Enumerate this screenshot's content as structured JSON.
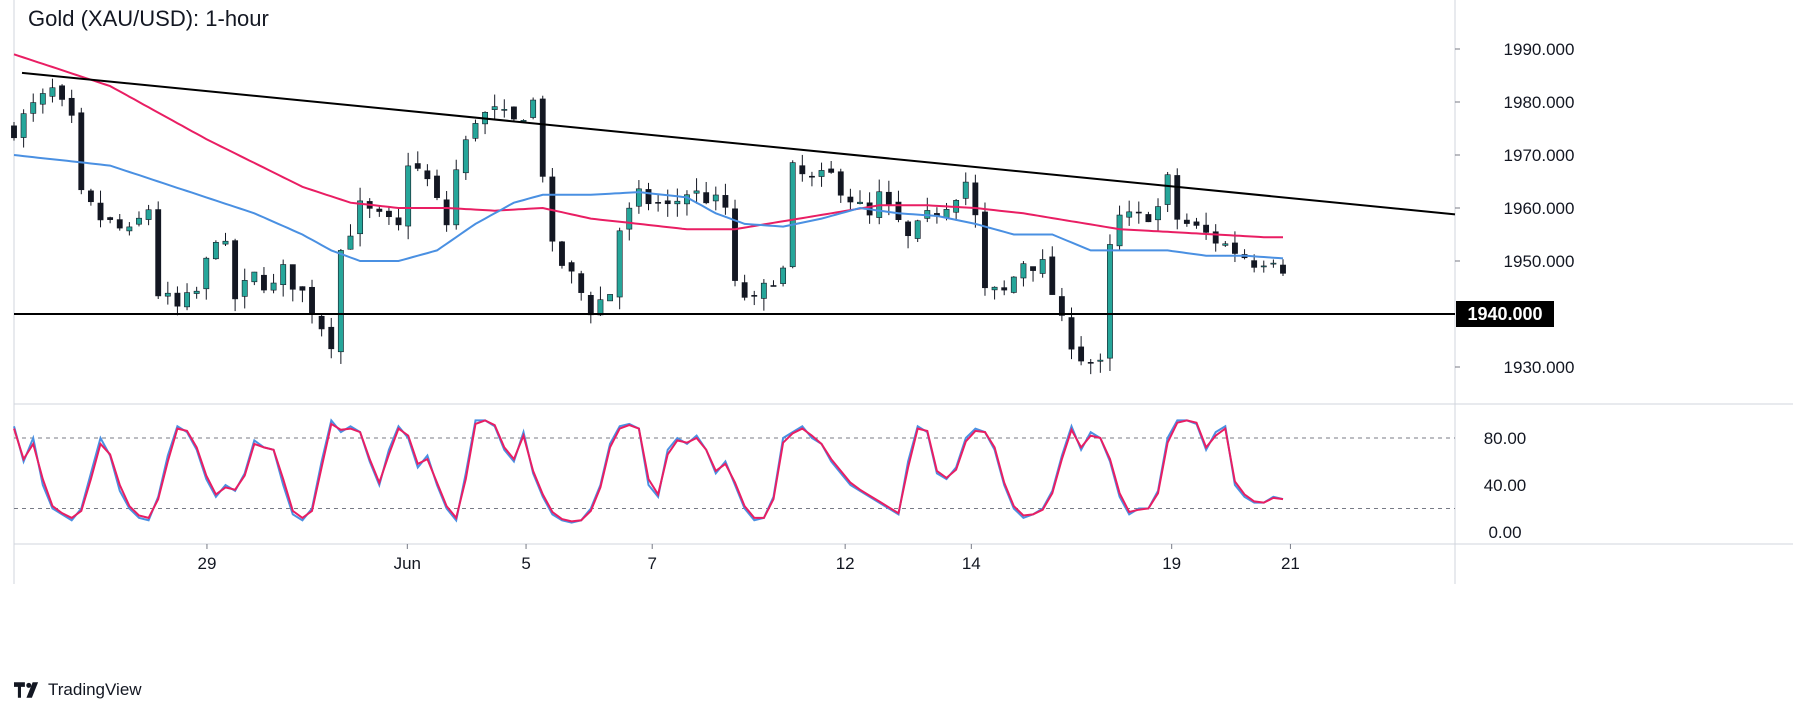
{
  "title": "Gold (XAU/USD): 1-hour",
  "brand": "TradingView",
  "colors": {
    "up_candle": "#26a69a",
    "down_candle": "#131722",
    "ma_slow": "#e91e63",
    "ma_fast": "#4a90e2",
    "stoch_k": "#4a90e2",
    "stoch_d": "#e91e63",
    "trendline": "#000000",
    "support": "#000000",
    "grid": "#d1d4dc"
  },
  "chart_data": [
    {
      "type": "candlestick",
      "title": "Gold (XAU/USD): 1-hour",
      "x_ticks": [
        "29",
        "Jun",
        "5",
        "7",
        "12",
        "14",
        "19",
        "21"
      ],
      "y_ticks": [
        "1990.000",
        "1980.000",
        "1970.000",
        "1960.000",
        "1950.000",
        "1930.000"
      ],
      "ylim": [
        1922,
        1998
      ],
      "support_level": 1940,
      "support_label": "1940.000",
      "trendline": {
        "start": 1985.5,
        "end": 1958.8
      },
      "close_path": [
        [
          0,
          1975
        ],
        [
          2,
          1979
        ],
        [
          4,
          1982
        ],
        [
          6,
          1976
        ],
        [
          7,
          1962
        ],
        [
          9,
          1958
        ],
        [
          12,
          1955
        ],
        [
          14,
          1960
        ],
        [
          15,
          1944
        ],
        [
          17,
          1941
        ],
        [
          19,
          1944
        ],
        [
          21,
          1955
        ],
        [
          22,
          1952
        ],
        [
          23,
          1943
        ],
        [
          25,
          1947
        ],
        [
          27,
          1945
        ],
        [
          28,
          1948
        ],
        [
          30,
          1944
        ],
        [
          32,
          1938
        ],
        [
          33,
          1935
        ],
        [
          34,
          1952
        ],
        [
          36,
          1960
        ],
        [
          38,
          1958
        ],
        [
          40,
          1956
        ],
        [
          41,
          1969
        ],
        [
          43,
          1965
        ],
        [
          45,
          1957
        ],
        [
          46,
          1967
        ],
        [
          48,
          1977
        ],
        [
          50,
          1978
        ],
        [
          52,
          1976
        ],
        [
          54,
          1980
        ],
        [
          55,
          1967
        ],
        [
          56,
          1952
        ],
        [
          58,
          1947
        ],
        [
          60,
          1941
        ],
        [
          62,
          1944
        ],
        [
          63,
          1956
        ],
        [
          65,
          1962
        ],
        [
          68,
          1960
        ],
        [
          70,
          1963
        ],
        [
          72,
          1962
        ],
        [
          74,
          1960
        ],
        [
          75,
          1945
        ],
        [
          77,
          1942
        ],
        [
          79,
          1947
        ],
        [
          80,
          1948
        ],
        [
          81,
          1967
        ],
        [
          83,
          1965
        ],
        [
          85,
          1966
        ],
        [
          87,
          1962
        ],
        [
          89,
          1958
        ],
        [
          90,
          1962
        ],
        [
          92,
          1957
        ],
        [
          93,
          1954
        ],
        [
          95,
          1958
        ],
        [
          97,
          1961
        ],
        [
          99,
          1965
        ],
        [
          100,
          1958
        ],
        [
          101,
          1944
        ],
        [
          103,
          1944
        ],
        [
          105,
          1950
        ],
        [
          107,
          1949
        ],
        [
          108,
          1944
        ],
        [
          109,
          1938
        ],
        [
          111,
          1932
        ],
        [
          113,
          1930
        ],
        [
          114,
          1952
        ],
        [
          115,
          1958
        ],
        [
          117,
          1958
        ],
        [
          119,
          1960
        ],
        [
          120,
          1965
        ],
        [
          121,
          1958
        ],
        [
          123,
          1956
        ],
        [
          125,
          1954
        ],
        [
          127,
          1952
        ],
        [
          129,
          1950
        ],
        [
          131,
          1951
        ],
        [
          132,
          1949
        ]
      ],
      "n_candles": 133,
      "ma_slow": [
        [
          0,
          1989
        ],
        [
          10,
          1983
        ],
        [
          20,
          1973
        ],
        [
          30,
          1964
        ],
        [
          35,
          1961
        ],
        [
          40,
          1960
        ],
        [
          45,
          1960
        ],
        [
          50,
          1959.5
        ],
        [
          55,
          1960
        ],
        [
          60,
          1958
        ],
        [
          65,
          1957
        ],
        [
          70,
          1956
        ],
        [
          75,
          1956
        ],
        [
          80,
          1957.5
        ],
        [
          85,
          1959
        ],
        [
          90,
          1960.5
        ],
        [
          95,
          1960.5
        ],
        [
          100,
          1960
        ],
        [
          105,
          1959
        ],
        [
          110,
          1957.5
        ],
        [
          115,
          1956
        ],
        [
          120,
          1955.5
        ],
        [
          125,
          1955
        ],
        [
          130,
          1954.5
        ],
        [
          132,
          1954.5
        ]
      ],
      "ma_fast": [
        [
          0,
          1970
        ],
        [
          5,
          1969
        ],
        [
          10,
          1968
        ],
        [
          15,
          1965
        ],
        [
          20,
          1962
        ],
        [
          25,
          1959
        ],
        [
          30,
          1955
        ],
        [
          33,
          1952
        ],
        [
          36,
          1950
        ],
        [
          40,
          1950
        ],
        [
          44,
          1952
        ],
        [
          48,
          1957
        ],
        [
          52,
          1961
        ],
        [
          55,
          1962.5
        ],
        [
          60,
          1962.5
        ],
        [
          65,
          1963
        ],
        [
          70,
          1962
        ],
        [
          73,
          1959
        ],
        [
          76,
          1957
        ],
        [
          80,
          1956.5
        ],
        [
          84,
          1958
        ],
        [
          88,
          1960
        ],
        [
          92,
          1959
        ],
        [
          96,
          1958.5
        ],
        [
          100,
          1957
        ],
        [
          104,
          1955
        ],
        [
          108,
          1955
        ],
        [
          112,
          1952
        ],
        [
          116,
          1952
        ],
        [
          120,
          1952
        ],
        [
          124,
          1951
        ],
        [
          128,
          1951
        ],
        [
          132,
          1950.5
        ]
      ]
    },
    {
      "type": "line",
      "title": "",
      "y_ticks": [
        "80.00",
        "40.00",
        "0.00"
      ],
      "ylim": [
        -5,
        105
      ],
      "dashed_levels": [
        80,
        20
      ],
      "series": [
        {
          "values": [
            90,
            60,
            80,
            40,
            20,
            15,
            10,
            20,
            50,
            80,
            65,
            35,
            20,
            12,
            10,
            30,
            65,
            90,
            85,
            70,
            45,
            30,
            40,
            35,
            50,
            78,
            72,
            70,
            40,
            15,
            10,
            20,
            60,
            95,
            85,
            90,
            85,
            60,
            40,
            70,
            90,
            80,
            55,
            65,
            40,
            20,
            10,
            50,
            95,
            95,
            90,
            70,
            60,
            85,
            50,
            30,
            15,
            10,
            8,
            10,
            20,
            40,
            75,
            90,
            92,
            88,
            40,
            30,
            70,
            80,
            75,
            82,
            70,
            50,
            60,
            40,
            20,
            10,
            12,
            30,
            80,
            85,
            90,
            80,
            75,
            60,
            50,
            40,
            35,
            30,
            25,
            20,
            15,
            60,
            90,
            85,
            50,
            45,
            55,
            80,
            88,
            85,
            70,
            40,
            20,
            12,
            15,
            20,
            35,
            65,
            90,
            70,
            85,
            80,
            60,
            30,
            15,
            20,
            20,
            35,
            80,
            95,
            95,
            92,
            70,
            85,
            90,
            40,
            30,
            25,
            25,
            30,
            28
          ]
        },
        {
          "values": [
            88,
            62,
            75,
            45,
            22,
            16,
            12,
            18,
            45,
            75,
            66,
            40,
            22,
            14,
            12,
            28,
            60,
            88,
            86,
            72,
            48,
            32,
            38,
            36,
            48,
            75,
            72,
            70,
            45,
            18,
            12,
            18,
            55,
            92,
            87,
            88,
            85,
            62,
            42,
            66,
            88,
            82,
            58,
            62,
            42,
            22,
            12,
            45,
            92,
            95,
            91,
            72,
            62,
            82,
            52,
            32,
            17,
            11,
            9,
            10,
            18,
            38,
            72,
            88,
            91,
            88,
            45,
            32,
            66,
            78,
            76,
            80,
            70,
            52,
            58,
            42,
            22,
            12,
            12,
            28,
            76,
            84,
            88,
            82,
            75,
            62,
            52,
            42,
            36,
            31,
            26,
            21,
            16,
            55,
            88,
            86,
            52,
            46,
            53,
            77,
            86,
            85,
            72,
            42,
            22,
            14,
            15,
            19,
            33,
            62,
            87,
            72,
            82,
            80,
            62,
            33,
            17,
            19,
            20,
            33,
            76,
            93,
            95,
            93,
            72,
            82,
            88,
            43,
            32,
            26,
            25,
            29,
            28
          ]
        }
      ]
    }
  ]
}
